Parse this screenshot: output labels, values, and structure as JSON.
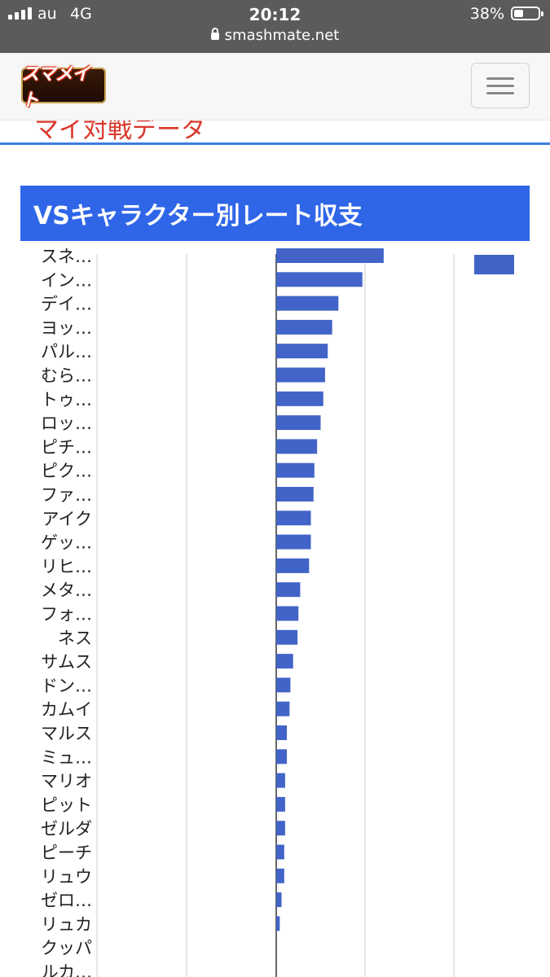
{
  "status_bar": {
    "carrier": "au",
    "network": "4G",
    "time": "20:12",
    "battery": "38%",
    "url": "smashmate.net"
  },
  "header": {
    "logo_text": "スマメイト",
    "menu_icon": "hamburger-menu-icon"
  },
  "page": {
    "subtitle": "マイ対戦データ",
    "section_title": "VSキャラクター別レート収支"
  },
  "colors": {
    "bar": "#4264c8",
    "section_header": "#2f66e8",
    "subtitle": "#d9372b",
    "rule": "#3d7be0"
  },
  "chart_data": {
    "type": "bar",
    "orientation": "horizontal",
    "categories": [
      "スネ…",
      "イン…",
      "デイ…",
      "ヨッ…",
      "パル…",
      "むら…",
      "トゥ…",
      "ロッ…",
      "ピチ…",
      "ピク…",
      "ファ…",
      "アイク",
      "ゲッ…",
      "リヒ…",
      "メタ…",
      "フォ…",
      "ネス",
      "サムス",
      "ドン…",
      "カムイ",
      "マルス",
      "ミュ…",
      "マリオ",
      "ピット",
      "ゼルダ",
      "ピーチ",
      "リュウ",
      "ゼロ…",
      "リュカ",
      "クッパ",
      "ルカ…"
    ],
    "values": [
      121,
      97,
      70,
      63,
      58,
      55,
      53,
      50,
      46,
      43,
      42,
      39,
      39,
      37,
      27,
      25,
      24,
      19,
      16,
      15,
      12,
      12,
      10,
      10,
      10,
      9,
      9,
      6,
      4,
      0,
      0
    ],
    "grid": true,
    "legend": {
      "placement": "top-right",
      "entries": [
        ""
      ]
    }
  }
}
